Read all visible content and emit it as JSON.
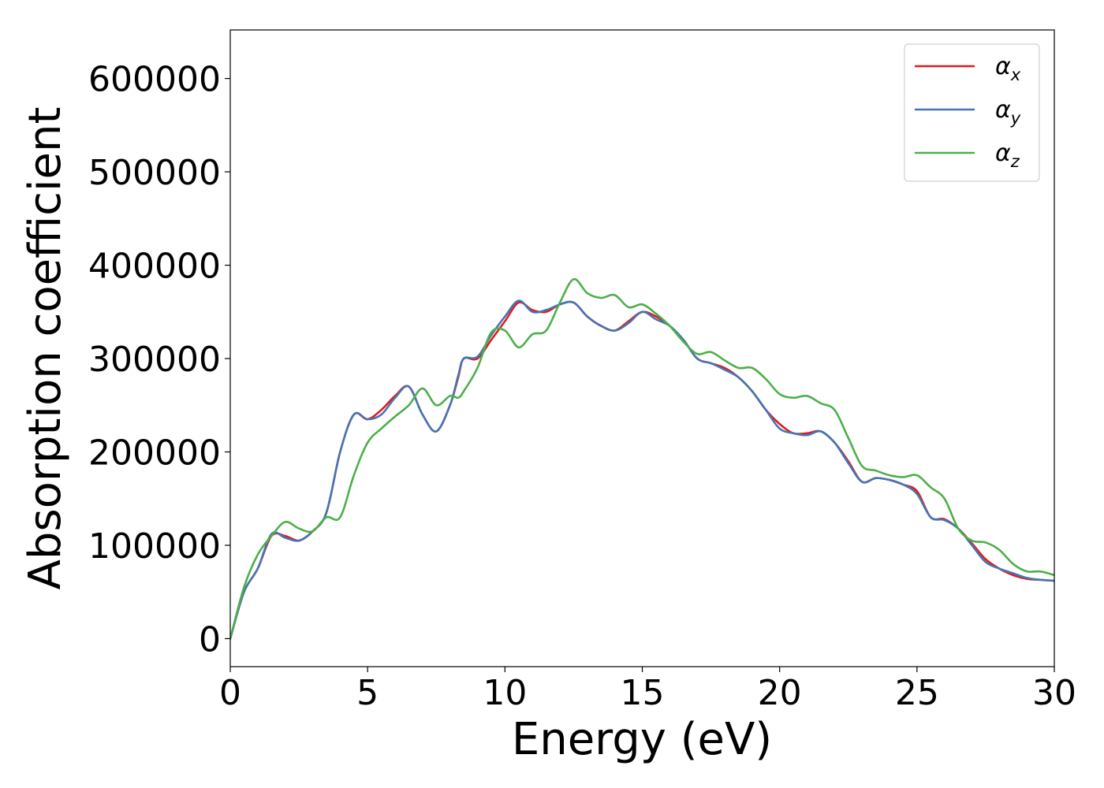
{
  "chart_data": {
    "type": "line",
    "xlabel": "Energy (eV)",
    "ylabel": "Absorption coefficient",
    "xlim": [
      0,
      30
    ],
    "ylim": [
      -30000,
      652000
    ],
    "x_ticks": [
      0,
      5,
      10,
      15,
      20,
      25,
      30
    ],
    "y_ticks": [
      0,
      100000,
      200000,
      300000,
      400000,
      500000,
      600000
    ],
    "x_tick_labels": [
      "0",
      "5",
      "10",
      "15",
      "20",
      "25",
      "30"
    ],
    "y_tick_labels": [
      "0",
      "100000",
      "200000",
      "300000",
      "400000",
      "500000",
      "600000"
    ],
    "grid": false,
    "legend_position": "top-right",
    "series": [
      {
        "name": "α",
        "subscript": "x",
        "color": "#e41a1c",
        "x": [
          0,
          0.5,
          1.0,
          1.5,
          2.0,
          2.5,
          3.0,
          3.5,
          4.0,
          4.5,
          5.0,
          5.5,
          6.0,
          6.5,
          7.0,
          7.5,
          8.0,
          8.3,
          8.5,
          9.0,
          9.5,
          10.0,
          10.5,
          11.0,
          11.5,
          12.0,
          12.5,
          13.0,
          13.5,
          14.0,
          14.5,
          15.0,
          15.5,
          16.0,
          16.5,
          17.0,
          17.5,
          18.0,
          18.5,
          19.0,
          19.5,
          20.0,
          20.5,
          21.0,
          21.5,
          22.0,
          22.5,
          23.0,
          23.5,
          24.0,
          24.5,
          25.0,
          25.5,
          26.0,
          26.5,
          27.0,
          27.5,
          28.0,
          28.5,
          29.0,
          29.5,
          30.0
        ],
        "y": [
          0,
          50000,
          75000,
          110000,
          110000,
          105000,
          115000,
          135000,
          200000,
          240000,
          235000,
          245000,
          260000,
          270000,
          240000,
          222000,
          250000,
          280000,
          300000,
          300000,
          320000,
          340000,
          360000,
          352000,
          350000,
          358000,
          360000,
          345000,
          335000,
          330000,
          340000,
          350000,
          345000,
          335000,
          320000,
          300000,
          295000,
          290000,
          280000,
          265000,
          245000,
          230000,
          220000,
          220000,
          222000,
          210000,
          190000,
          168000,
          172000,
          170000,
          165000,
          158000,
          130000,
          128000,
          118000,
          102000,
          85000,
          75000,
          68000,
          64000,
          63000,
          62000
        ]
      },
      {
        "name": "α",
        "subscript": "y",
        "color": "#4575b4",
        "x": [
          0,
          0.5,
          1.0,
          1.5,
          2.0,
          2.5,
          3.0,
          3.5,
          4.0,
          4.5,
          5.0,
          5.5,
          6.0,
          6.5,
          7.0,
          7.5,
          8.0,
          8.3,
          8.5,
          9.0,
          9.5,
          10.0,
          10.5,
          11.0,
          11.5,
          12.0,
          12.5,
          13.0,
          13.5,
          14.0,
          14.5,
          15.0,
          15.5,
          16.0,
          16.5,
          17.0,
          17.5,
          18.0,
          18.5,
          19.0,
          19.5,
          20.0,
          20.5,
          21.0,
          21.5,
          22.0,
          22.5,
          23.0,
          23.5,
          24.0,
          24.5,
          25.0,
          25.5,
          26.0,
          26.5,
          27.0,
          27.5,
          28.0,
          28.5,
          29.0,
          29.5,
          30.0
        ],
        "y": [
          0,
          50000,
          75000,
          112000,
          108000,
          105000,
          115000,
          135000,
          200000,
          240000,
          235000,
          240000,
          258000,
          270000,
          240000,
          222000,
          250000,
          282000,
          300000,
          302000,
          325000,
          345000,
          362000,
          350000,
          352000,
          358000,
          360000,
          345000,
          335000,
          330000,
          338000,
          350000,
          342000,
          335000,
          320000,
          300000,
          295000,
          288000,
          280000,
          265000,
          245000,
          225000,
          220000,
          218000,
          222000,
          210000,
          188000,
          168000,
          172000,
          170000,
          165000,
          155000,
          130000,
          127000,
          118000,
          100000,
          82000,
          75000,
          70000,
          65000,
          63000,
          62000
        ]
      },
      {
        "name": "α",
        "subscript": "z",
        "color": "#4daf4a",
        "x": [
          0,
          0.5,
          1.0,
          1.5,
          2.0,
          2.5,
          3.0,
          3.5,
          4.0,
          4.5,
          5.0,
          5.5,
          6.0,
          6.5,
          7.0,
          7.5,
          8.0,
          8.3,
          8.5,
          9.0,
          9.5,
          10.0,
          10.5,
          11.0,
          11.5,
          12.0,
          12.5,
          13.0,
          13.5,
          14.0,
          14.5,
          15.0,
          15.5,
          16.0,
          16.5,
          17.0,
          17.5,
          18.0,
          18.5,
          19.0,
          19.5,
          20.0,
          20.5,
          21.0,
          21.5,
          22.0,
          22.5,
          23.0,
          23.5,
          24.0,
          24.5,
          25.0,
          25.5,
          26.0,
          26.5,
          27.0,
          27.5,
          28.0,
          28.5,
          29.0,
          29.5,
          30.0
        ],
        "y": [
          0,
          55000,
          90000,
          110000,
          125000,
          118000,
          115000,
          130000,
          130000,
          175000,
          210000,
          225000,
          238000,
          250000,
          268000,
          250000,
          260000,
          258000,
          265000,
          290000,
          328000,
          330000,
          312000,
          326000,
          330000,
          360000,
          385000,
          370000,
          365000,
          368000,
          355000,
          358000,
          348000,
          335000,
          318000,
          305000,
          307000,
          298000,
          290000,
          290000,
          278000,
          262000,
          258000,
          260000,
          252000,
          245000,
          215000,
          185000,
          180000,
          175000,
          173000,
          175000,
          162000,
          150000,
          118000,
          105000,
          103000,
          95000,
          80000,
          72000,
          72000,
          68000
        ]
      }
    ]
  }
}
